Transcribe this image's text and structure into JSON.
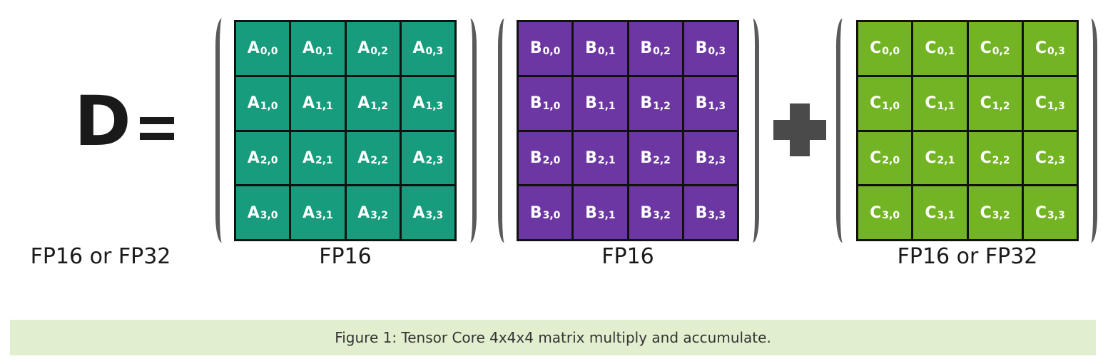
{
  "result": {
    "symbol": "D",
    "equals": "=",
    "precision": "FP16 or FP32"
  },
  "matrices": [
    {
      "id": "A",
      "precision": "FP16",
      "color": "#179c7d",
      "cells": [
        [
          "A",
          "0,0"
        ],
        [
          "A",
          "0,1"
        ],
        [
          "A",
          "0,2"
        ],
        [
          "A",
          "0,3"
        ],
        [
          "A",
          "1,0"
        ],
        [
          "A",
          "1,1"
        ],
        [
          "A",
          "1,2"
        ],
        [
          "A",
          "1,3"
        ],
        [
          "A",
          "2,0"
        ],
        [
          "A",
          "2,1"
        ],
        [
          "A",
          "2,2"
        ],
        [
          "A",
          "2,3"
        ],
        [
          "A",
          "3,0"
        ],
        [
          "A",
          "3,1"
        ],
        [
          "A",
          "3,2"
        ],
        [
          "A",
          "3,3"
        ]
      ]
    },
    {
      "id": "B",
      "precision": "FP16",
      "color": "#6c37a3",
      "cells": [
        [
          "B",
          "0,0"
        ],
        [
          "B",
          "0,1"
        ],
        [
          "B",
          "0,2"
        ],
        [
          "B",
          "0,3"
        ],
        [
          "B",
          "1,0"
        ],
        [
          "B",
          "1,1"
        ],
        [
          "B",
          "1,2"
        ],
        [
          "B",
          "1,3"
        ],
        [
          "B",
          "2,0"
        ],
        [
          "B",
          "2,1"
        ],
        [
          "B",
          "2,2"
        ],
        [
          "B",
          "2,3"
        ],
        [
          "B",
          "3,0"
        ],
        [
          "B",
          "3,1"
        ],
        [
          "B",
          "3,2"
        ],
        [
          "B",
          "3,3"
        ]
      ]
    },
    {
      "id": "C",
      "precision": "FP16 or FP32",
      "color": "#73b425",
      "cells": [
        [
          "C",
          "0,0"
        ],
        [
          "C",
          "0,1"
        ],
        [
          "C",
          "0,2"
        ],
        [
          "C",
          "0,3"
        ],
        [
          "C",
          "1,0"
        ],
        [
          "C",
          "1,1"
        ],
        [
          "C",
          "1,2"
        ],
        [
          "C",
          "1,3"
        ],
        [
          "C",
          "2,0"
        ],
        [
          "C",
          "2,1"
        ],
        [
          "C",
          "2,2"
        ],
        [
          "C",
          "2,3"
        ],
        [
          "C",
          "3,0"
        ],
        [
          "C",
          "3,1"
        ],
        [
          "C",
          "3,2"
        ],
        [
          "C",
          "3,3"
        ]
      ]
    }
  ],
  "operator_plus": "plus-sign",
  "caption": "Figure 1: Tensor Core 4x4x4 matrix multiply and accumulate."
}
